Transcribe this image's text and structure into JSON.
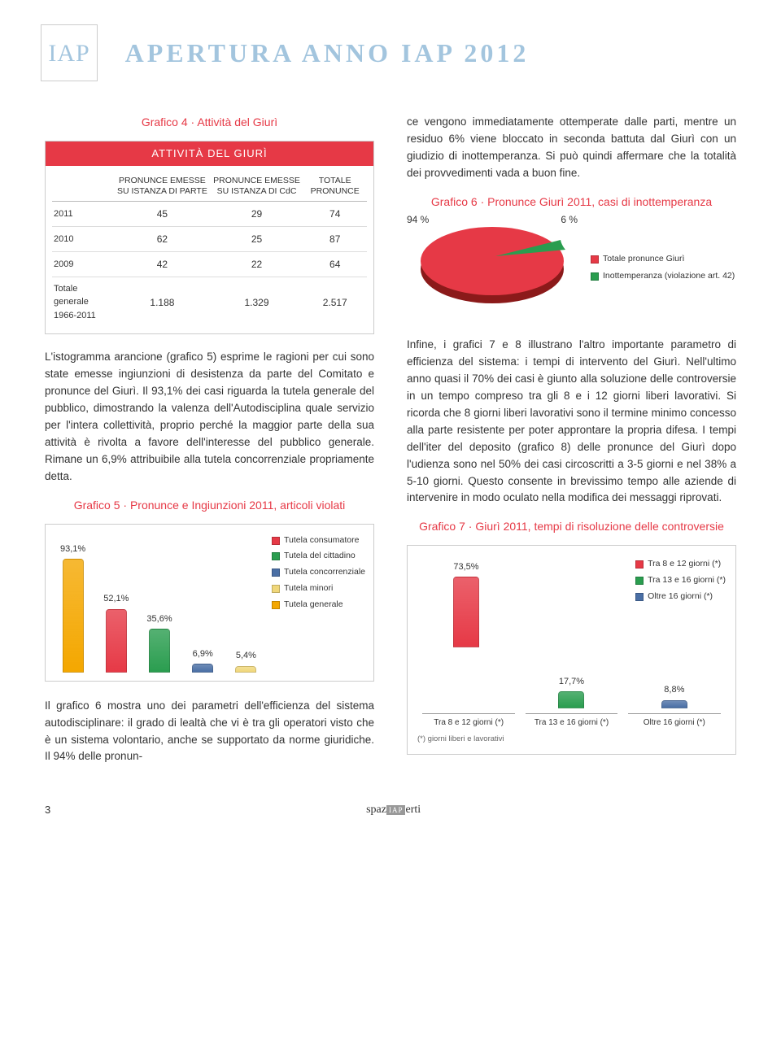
{
  "header": {
    "logo_text": "IAP",
    "title": "APERTURA ANNO IAP 2012"
  },
  "table4": {
    "title": "Grafico 4 · Attività del Giurì",
    "head": "ATTIVITÀ DEL GIURÌ",
    "columns": [
      "",
      "PRONUNCE EMESSE SU ISTANZA DI PARTE",
      "PRONUNCE EMESSE SU ISTANZA DI CdC",
      "TOTALE PRONUNCE"
    ],
    "rows": [
      [
        "2011",
        "45",
        "29",
        "74"
      ],
      [
        "2010",
        "62",
        "25",
        "87"
      ],
      [
        "2009",
        "42",
        "22",
        "64"
      ],
      [
        "Totale generale 1966-2011",
        "1.188",
        "1.329",
        "2.517"
      ]
    ]
  },
  "para_left_1": "L'istogramma arancione (grafico 5) esprime le ragioni per cui sono state emesse ingiunzioni di desistenza da parte del Comitato e pronunce del Giurì. Il 93,1% dei casi riguarda la tutela generale del pubblico, dimostrando la valenza dell'Autodisciplina quale servizio per l'intera collettività, proprio perché la maggior parte della sua attività è rivolta a favore dell'interesse del pubblico generale. Rimane un 6,9% attribuibile alla tutela concorrenziale propriamente detta.",
  "chart5": {
    "title": "Grafico 5 · Pronunce e Ingiunzioni 2011, articoli violati",
    "bars": [
      {
        "label": "93,1%",
        "value": 93.1,
        "color": "#f4a700"
      },
      {
        "label": "52,1%",
        "value": 52.1,
        "color": "#e63946"
      },
      {
        "label": "35,6%",
        "value": 35.6,
        "color": "#2a9d4f"
      },
      {
        "label": "6,9%",
        "value": 6.9,
        "color": "#4a6fa5"
      },
      {
        "label": "5,4%",
        "value": 5.4,
        "color": "#f0d77a"
      }
    ],
    "legend": [
      {
        "label": "Tutela consumatore",
        "color": "#e63946"
      },
      {
        "label": "Tutela del cittadino",
        "color": "#2a9d4f"
      },
      {
        "label": "Tutela concorrenziale",
        "color": "#4a6fa5"
      },
      {
        "label": "Tutela minori",
        "color": "#f0d77a"
      },
      {
        "label": "Tutela generale",
        "color": "#f4a700"
      }
    ],
    "max": 100
  },
  "para_left_2": "Il grafico 6 mostra uno dei parametri dell'efficienza del sistema autodisciplinare: il grado di lealtà che vi è tra gli operatori visto che è un sistema volontario, anche se supportato da norme giuridiche. Il 94% delle pronun-",
  "para_right_1": "ce vengono immediatamente ottemperate dalle parti, mentre un residuo 6% viene bloccato in seconda battuta dal Giurì con un giudizio di inottemperanza. Si può quindi affermare che la totalità dei provvedimenti vada a buon fine.",
  "chart6": {
    "title": "Grafico 6 · Pronunce Giurì 2011, casi di inottemperanza",
    "left_pct": "94 %",
    "right_pct": "6 %",
    "slices": [
      {
        "color": "#e63946",
        "value": 94
      },
      {
        "color": "#2a9d4f",
        "value": 6
      }
    ],
    "legend": [
      {
        "label": "Totale pronunce Giurì",
        "color": "#e63946"
      },
      {
        "label": "Inottemperanza (violazione art. 42)",
        "color": "#2a9d4f"
      }
    ]
  },
  "para_right_2": "Infine, i grafici 7 e 8 illustrano l'altro importante parametro di efficienza del sistema: i tempi di intervento del Giurì. Nell'ultimo anno quasi il 70% dei casi è giunto alla soluzione delle controversie in un tempo compreso tra gli 8 e i 12 giorni liberi lavorativi. Si ricorda che 8 giorni liberi lavorativi sono il termine minimo concesso alla parte resistente per poter approntare la propria difesa. I tempi dell'iter del deposito (grafico 8) delle pronunce del Giurì dopo l'udienza sono nel 50% dei casi circoscritti a 3-5 giorni e nel 38% a 5-10 giorni. Questo consente in brevissimo tempo alle aziende di intervenire in modo oculato nella modifica dei messaggi riprovati.",
  "chart7": {
    "title": "Grafico 7 · Giurì 2011, tempi di risoluzione delle controversie",
    "top_bar": {
      "label": "73,5%",
      "value": 73.5,
      "color": "#e63946"
    },
    "legend": [
      {
        "label": "Tra 8 e 12 giorni (*)",
        "color": "#e63946"
      },
      {
        "label": "Tra 13 e 16 giorni (*)",
        "color": "#2a9d4f"
      },
      {
        "label": "Oltre 16 giorni (*)",
        "color": "#4a6fa5"
      }
    ],
    "lower_bars": [
      {
        "label": "17,7%",
        "value": 17.7,
        "color": "#2a9d4f",
        "xlabel": "Tra 13 e 16 giorni (*)"
      },
      {
        "label": "8,8%",
        "value": 8.8,
        "color": "#4a6fa5",
        "xlabel": "Oltre 16 giorni (*)"
      }
    ],
    "xlabel_first": "Tra 8 e 12 giorni (*)",
    "footnote": "(*) giorni liberi e lavorativi",
    "max": 80
  },
  "footer": {
    "page": "3",
    "brand_left": "spaz",
    "brand_iap": "IAP",
    "brand_right": "erti"
  }
}
